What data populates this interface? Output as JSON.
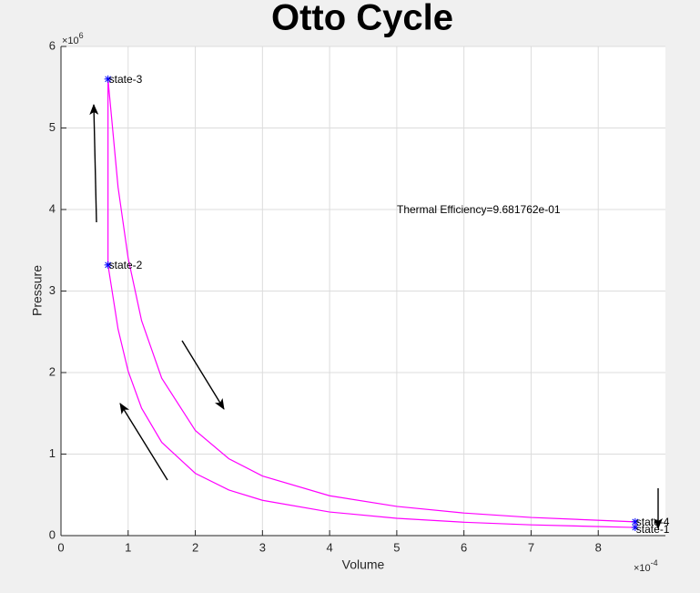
{
  "chart_data": {
    "type": "line",
    "title": "Otto Cycle",
    "x_label": "Volume",
    "y_label": "Pressure",
    "x_exponent": {
      "base": "×10",
      "power": "-4"
    },
    "y_exponent": {
      "base": "×10",
      "power": "6"
    },
    "x": [
      0.000855,
      0.0007,
      0.0006,
      0.0005,
      0.0004,
      0.0003,
      0.00025,
      0.0002,
      0.00015,
      0.00012,
      0.0001,
      8.5e-05,
      7e-05,
      7e-05,
      8.5e-05,
      0.0001,
      0.00012,
      0.00015,
      0.0002,
      0.00025,
      0.0003,
      0.0004,
      0.0005,
      0.0006,
      0.0007,
      0.000855,
      0.000855
    ],
    "values": [
      100000,
      132000,
      164000,
      212000,
      290000,
      433000,
      559000,
      764000,
      1144000,
      1563000,
      2017000,
      2533000,
      3320000,
      5600000,
      4273000,
      3403000,
      2637000,
      1930000,
      1289000,
      943000,
      731000,
      489000,
      358000,
      277000,
      223000,
      169000,
      100000
    ],
    "color": "#ff00ff",
    "states": [
      {
        "label": "state-1",
        "x": 0.000855,
        "y": 100000
      },
      {
        "label": "state-2",
        "x": 7e-05,
        "y": 3320000
      },
      {
        "label": "state-3",
        "x": 7e-05,
        "y": 5600000
      },
      {
        "label": "state-4",
        "x": 0.000855,
        "y": 169000
      }
    ],
    "marker_color": "#0000ff",
    "annotation": "Thermal Efficiency=9.681762e-01",
    "xlim": [
      0,
      0.0009
    ],
    "ylim": [
      0,
      6000000
    ],
    "xticks": [
      0,
      {
        "value": 0.0001,
        "label": "1"
      },
      {
        "value": 0.0002,
        "label": "2"
      },
      {
        "value": 0.0003,
        "label": "3"
      },
      {
        "value": 0.0004,
        "label": "4"
      },
      {
        "value": 0.0005,
        "label": "5"
      },
      {
        "value": 0.0006,
        "label": "6"
      },
      {
        "value": 0.0007,
        "label": "7"
      },
      {
        "value": 0.0008,
        "label": "8"
      }
    ],
    "yticks": [
      0,
      {
        "value": 1000000,
        "label": "1"
      },
      {
        "value": 2000000,
        "label": "2"
      },
      {
        "value": 3000000,
        "label": "3"
      },
      {
        "value": 4000000,
        "label": "4"
      },
      {
        "value": 5000000,
        "label": "5"
      },
      {
        "value": 6000000,
        "label": "6"
      }
    ],
    "grid": true
  }
}
